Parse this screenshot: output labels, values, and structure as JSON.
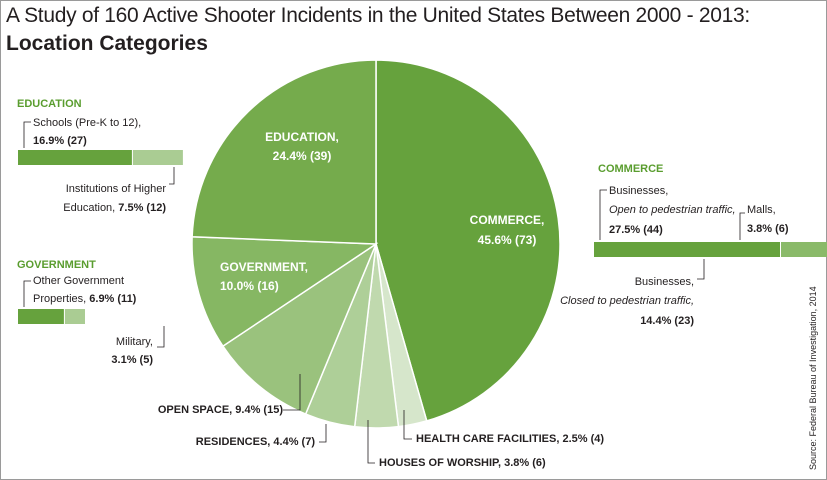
{
  "title": "A Study of 160 Active Shooter Incidents in the United States Between 2000 - 2013:",
  "subtitle": "Location Categories",
  "source": "Source: Federal Bureau of Investigation, 2014",
  "colors": {
    "commerce": "#66a23d",
    "education": "#75ab4c",
    "government": "#86b763",
    "open_space": "#9ac27d",
    "residences": "#aecf98",
    "houses_of_worship": "#c0d9ae",
    "health_care": "#d6e6cb",
    "bar_dark": "#66a23d",
    "bar_mid": "#8aba69",
    "bar_light": "#aacc93",
    "heading": "#5a9d2f"
  },
  "chart_data": {
    "type": "pie",
    "title": "A Study of 160 Active Shooter Incidents in the United States Between 2000 - 2013:",
    "subtitle": "Location Categories",
    "slices": [
      {
        "key": "commerce",
        "label": "COMMERCE,",
        "value_label": "45.6% (73)",
        "percent": 45.6,
        "count": 73
      },
      {
        "key": "health_care",
        "label": "HEALTH CARE FACILITIES,",
        "value_label": "2.5% (4)",
        "percent": 2.5,
        "count": 4
      },
      {
        "key": "houses_of_worship",
        "label": "HOUSES OF WORSHIP,",
        "value_label": "3.8% (6)",
        "percent": 3.8,
        "count": 6
      },
      {
        "key": "residences",
        "label": "RESIDENCES,",
        "value_label": "4.4% (7)",
        "percent": 4.4,
        "count": 7
      },
      {
        "key": "open_space",
        "label": "OPEN SPACE,",
        "value_label": "9.4% (15)",
        "percent": 9.4,
        "count": 15
      },
      {
        "key": "government",
        "label": "GOVERNMENT,",
        "value_label": "10.0% (16)",
        "percent": 10.0,
        "count": 16
      },
      {
        "key": "education",
        "label": "EDUCATION,",
        "value_label": "24.4% (39)",
        "percent": 24.4,
        "count": 39
      }
    ],
    "breakdowns": {
      "education": {
        "heading": "EDUCATION",
        "parts": [
          {
            "label": "Schools (Pre-K to 12),",
            "value_label": "16.9% (27)",
            "percent": 16.9,
            "count": 27
          },
          {
            "label1": "Institutions of Higher",
            "label2": "Education,",
            "value_label": "7.5% (12)",
            "percent": 7.5,
            "count": 12
          }
        ]
      },
      "government": {
        "heading": "GOVERNMENT",
        "parts": [
          {
            "label1": "Other Government",
            "label2": "Properties,",
            "value_label": "6.9% (11)",
            "percent": 6.9,
            "count": 11
          },
          {
            "label": "Military,",
            "value_label": "3.1% (5)",
            "percent": 3.1,
            "count": 5
          }
        ]
      },
      "commerce": {
        "heading": "COMMERCE",
        "parts": [
          {
            "label1": "Businesses,",
            "label2": "Open to pedestrian traffic,",
            "value_label": "27.5% (44)",
            "percent": 27.5,
            "count": 44
          },
          {
            "label1": "Businesses,",
            "label2": "Closed to pedestrian traffic,",
            "value_label": "14.4% (23)",
            "percent": 14.4,
            "count": 23
          },
          {
            "label": "Malls,",
            "value_label": "3.8% (6)",
            "percent": 3.8,
            "count": 6
          }
        ]
      }
    }
  }
}
